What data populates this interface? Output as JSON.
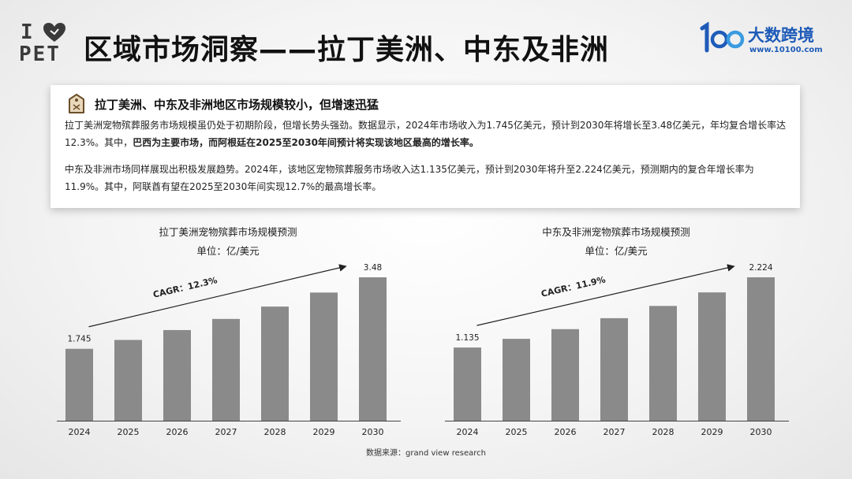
{
  "logo": {
    "line1": "I",
    "line2": "PET"
  },
  "title": "区域市场洞察——拉丁美洲、中东及非洲",
  "brand": {
    "name": "大数跨境",
    "url": "www.10100.com"
  },
  "card": {
    "heading": "拉丁美洲、中东及非洲地区市场规模较小，但增速迅猛",
    "p1_a": "拉丁美洲宠物殡葬服务市场规模虽仍处于初期阶段，但增长势头强劲。数据显示，2024年市场收入为1.745亿美元，预计到2030年将增长至3.48亿美元，年均复合增长率达12.3%。其中，",
    "p1_bold": "巴西为主要市场，而阿根廷在2025至2030年间预计将实现该地区最高的增长率。",
    "p2": "中东及非洲市场同样展现出积极发展趋势。2024年，该地区宠物殡葬服务市场收入达1.135亿美元，预计到2030年将升至2.224亿美元，预测期内的复合年增长率为11.9%。其中，阿联酋有望在2025至2030年间实现12.7%的最高增长率。"
  },
  "source": "数据来源：grand view research",
  "chart_data": [
    {
      "type": "bar",
      "title": "拉丁美洲宠物殡葬市场规模预测",
      "unit": "单位：亿/美元",
      "categories": [
        "2024",
        "2025",
        "2026",
        "2027",
        "2028",
        "2029",
        "2030"
      ],
      "values": [
        1.745,
        1.96,
        2.2,
        2.47,
        2.77,
        3.11,
        3.48
      ],
      "labels": [
        "1.745",
        "",
        "",
        "",
        "",
        "",
        "3.48"
      ],
      "annotation": "CAGR：12.3%",
      "ylim": [
        0,
        3.48
      ],
      "color": "#8a8a8a"
    },
    {
      "type": "bar",
      "title": "中东及非洲宠物殡葬市场规模预测",
      "unit": "单位：亿/美元",
      "categories": [
        "2024",
        "2025",
        "2026",
        "2027",
        "2028",
        "2029",
        "2030"
      ],
      "values": [
        1.135,
        1.27,
        1.42,
        1.59,
        1.78,
        1.99,
        2.224
      ],
      "labels": [
        "1.135",
        "",
        "",
        "",
        "",
        "",
        "2.224"
      ],
      "annotation": "CAGR：11.9%",
      "ylim": [
        0,
        2.224
      ],
      "color": "#8a8a8a"
    }
  ]
}
